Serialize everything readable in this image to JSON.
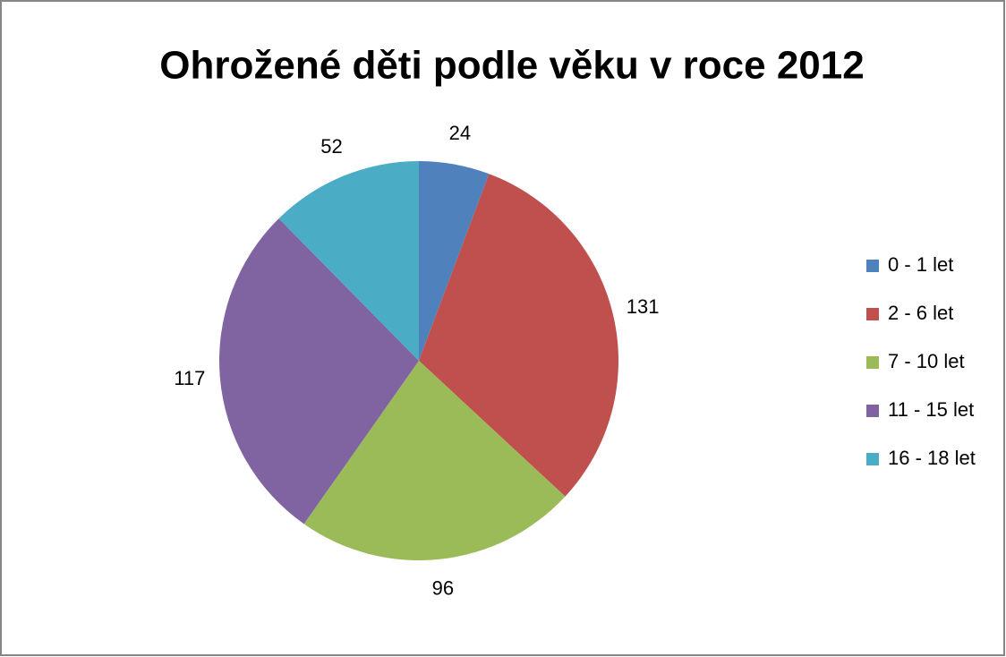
{
  "chart_data": {
    "type": "pie",
    "title": "Ohrožené děti podle věku v roce 2012",
    "categories": [
      "0 - 1 let",
      "2 - 6 let",
      "7 - 10 let",
      "11 - 15 let",
      "16 - 18 let"
    ],
    "values": [
      24,
      131,
      96,
      117,
      52
    ],
    "colors": [
      "#4f81bd",
      "#c0504d",
      "#9bbb59",
      "#8064a2",
      "#4bacc6"
    ],
    "legend": "right"
  }
}
